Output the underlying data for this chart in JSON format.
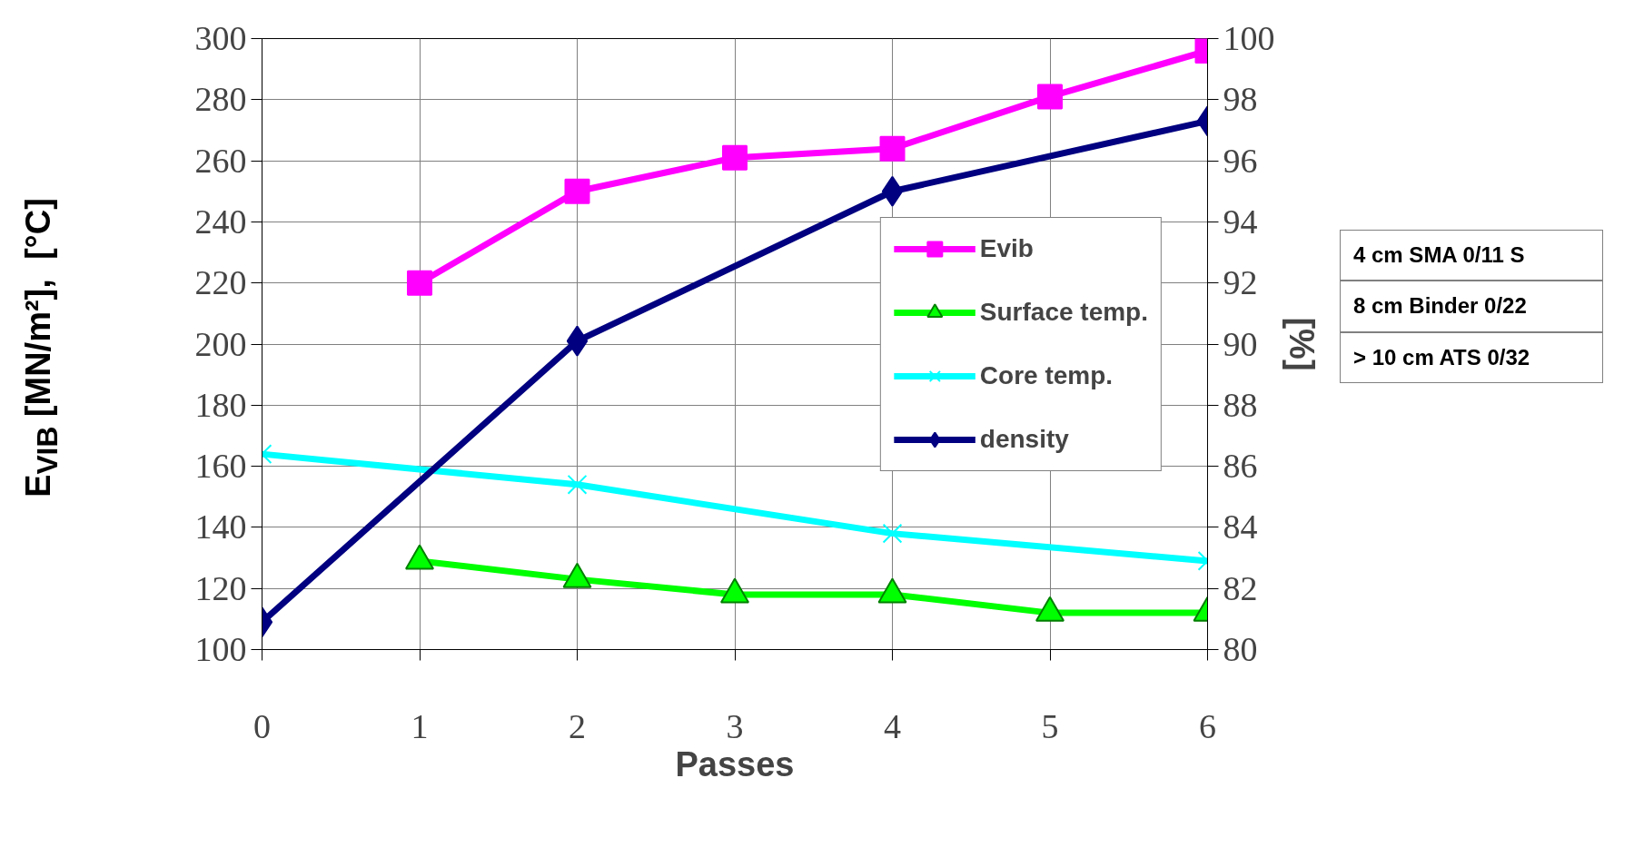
{
  "chart_data": {
    "type": "line",
    "xlabel": "Passes",
    "ylabel": "E$_{VIB}$ [MN/m²],  [°C]",
    "y2label": "[%]",
    "xlim": [
      0,
      6
    ],
    "xticks": [
      0,
      1,
      2,
      3,
      4,
      5,
      6
    ],
    "ylim": [
      100,
      300
    ],
    "yticks": [
      100,
      120,
      140,
      160,
      180,
      200,
      220,
      240,
      260,
      280,
      300
    ],
    "y2lim": [
      80,
      100
    ],
    "y2ticks": [
      80,
      82,
      84,
      86,
      88,
      90,
      92,
      94,
      96,
      98,
      100
    ],
    "grid": true,
    "legend": "right",
    "series": [
      {
        "name": "Evib",
        "color": "#ff00ff",
        "marker": "square",
        "x": [
          1,
          2,
          3,
          4,
          5,
          6
        ],
        "values": [
          220,
          250,
          261,
          264,
          281,
          296
        ]
      },
      {
        "name": "Surface temp.",
        "color": "#00ff00",
        "marker": "triangle",
        "x": [
          1,
          2,
          3,
          4,
          5,
          6
        ],
        "values": [
          129,
          123,
          118,
          118,
          112,
          112
        ]
      },
      {
        "name": "Core temp.",
        "color": "#00ffff",
        "marker": "cross",
        "x": [
          0,
          2,
          4,
          6
        ],
        "values": [
          164,
          154,
          138,
          129
        ]
      },
      {
        "name": "density",
        "color": "#000080",
        "marker": "diamond",
        "axis": "y2",
        "x": [
          0,
          2,
          4,
          6
        ],
        "values": [
          80.9,
          90.1,
          95.0,
          97.3
        ]
      }
    ],
    "annotations": [
      "4 cm SMA 0/11 S",
      "8 cm Binder 0/22",
      "> 10 cm ATS 0/32"
    ]
  }
}
